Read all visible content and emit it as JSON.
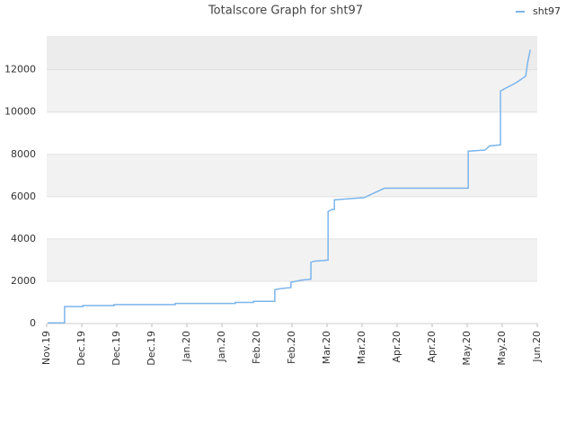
{
  "chart_data": {
    "type": "line",
    "title": "Totalscore Graph for sht97",
    "xlim": [
      0,
      14
    ],
    "xticks": [
      {
        "value": 0,
        "label": "Nov.19"
      },
      {
        "value": 1,
        "label": "Dec.19"
      },
      {
        "value": 2,
        "label": "Dec.19"
      },
      {
        "value": 3,
        "label": "Dec.19"
      },
      {
        "value": 4,
        "label": "Jan.20"
      },
      {
        "value": 5,
        "label": "Jan.20"
      },
      {
        "value": 6,
        "label": "Feb.20"
      },
      {
        "value": 7,
        "label": "Feb.20"
      },
      {
        "value": 8,
        "label": "Mar.20"
      },
      {
        "value": 9,
        "label": "Mar.20"
      },
      {
        "value": 10,
        "label": "Apr.20"
      },
      {
        "value": 11,
        "label": "Apr.20"
      },
      {
        "value": 12,
        "label": "May.20"
      },
      {
        "value": 13,
        "label": "May.20"
      },
      {
        "value": 14,
        "label": "Jun.20"
      }
    ],
    "ylim": [
      0,
      13600
    ],
    "yticks": [
      0,
      2000,
      4000,
      6000,
      8000,
      10000,
      12000
    ],
    "legend": "top-right",
    "series": [
      {
        "name": "sht97",
        "color": "#7cb5ec",
        "x": [
          0.03,
          0.51,
          0.51,
          1.03,
          1.03,
          1.92,
          1.92,
          3.67,
          3.67,
          5.38,
          5.38,
          5.9,
          5.9,
          6.51,
          6.51,
          6.67,
          6.97,
          6.97,
          7.26,
          7.54,
          7.54,
          7.64,
          8.03,
          8.03,
          8.15,
          8.21,
          8.21,
          8.62,
          9.05,
          9.64,
          12.03,
          12.03,
          12.51,
          12.64,
          12.95,
          12.95,
          13.41,
          13.67,
          13.72,
          13.8
        ],
        "values": [
          30,
          30,
          800,
          800,
          850,
          850,
          900,
          900,
          950,
          950,
          1000,
          1000,
          1050,
          1050,
          1600,
          1650,
          1700,
          1950,
          2050,
          2100,
          2900,
          2950,
          3000,
          5300,
          5400,
          5400,
          5850,
          5900,
          5950,
          6400,
          6400,
          8150,
          8200,
          8400,
          8450,
          11000,
          11400,
          11700,
          12300,
          12950
        ]
      }
    ]
  }
}
